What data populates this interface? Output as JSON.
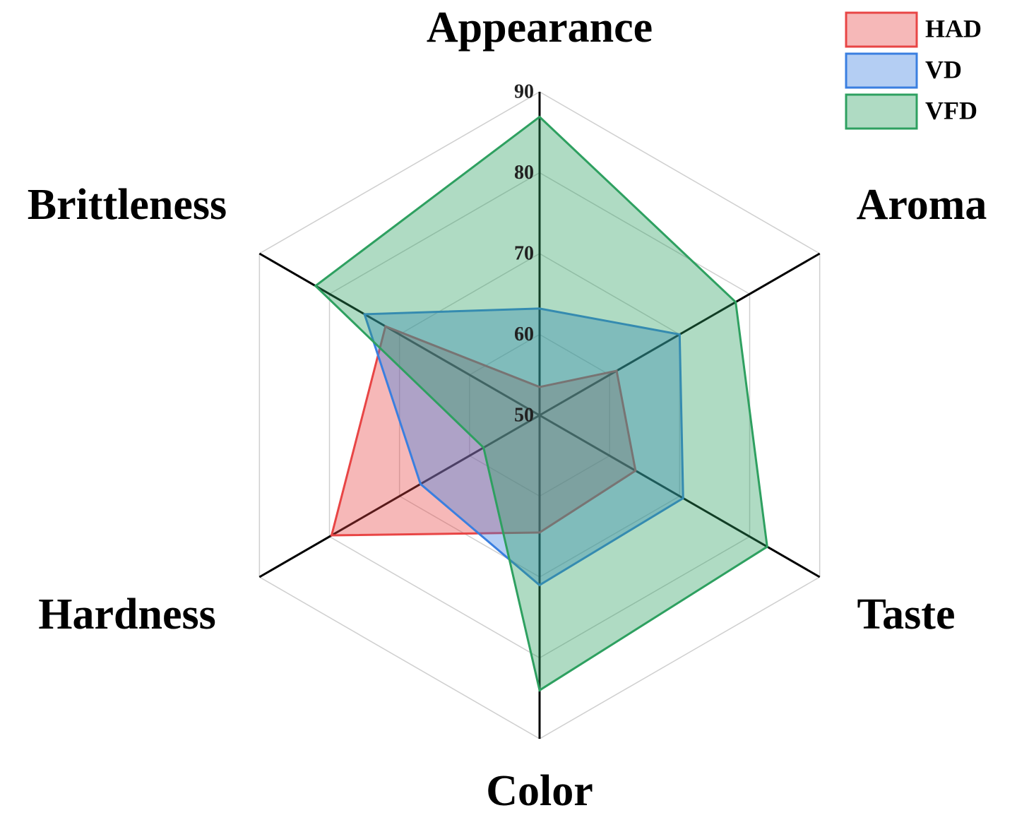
{
  "chart_data": {
    "type": "radar",
    "categories": [
      "Appearance",
      "Aroma",
      "Taste",
      "Color",
      "Hardness",
      "Brittleness"
    ],
    "rlim": [
      50,
      90
    ],
    "rticks": [
      50,
      60,
      70,
      80,
      90
    ],
    "grid": true,
    "legend": "upper right",
    "series": [
      {
        "name": "HAD",
        "color": "#e84545",
        "values": [
          53.5,
          61,
          63.7,
          64.5,
          79.7,
          72
        ]
      },
      {
        "name": "VD",
        "color": "#3a7fe0",
        "values": [
          63.2,
          70,
          70.5,
          71,
          67,
          75
        ]
      },
      {
        "name": "VFD",
        "color": "#2ea060",
        "values": [
          86.9,
          78,
          82.5,
          84,
          58,
          82
        ]
      }
    ]
  }
}
